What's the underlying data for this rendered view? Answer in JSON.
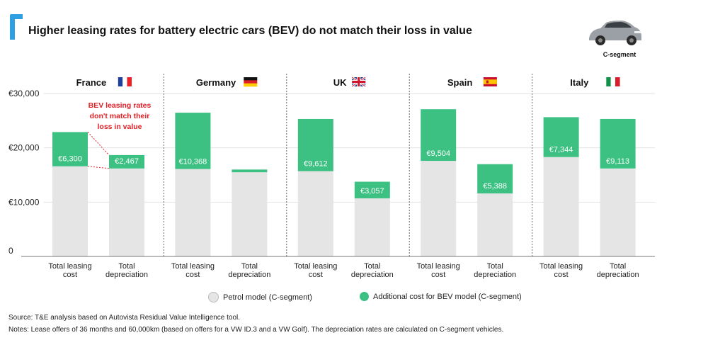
{
  "header": {
    "title": "Higher leasing rates for battery electric cars (BEV) do not match their loss in value",
    "car_label": "C-segment",
    "car_icon": "car-icon"
  },
  "legend": {
    "petrol": "Petrol model (C-segment)",
    "bev": "Additional cost for BEV model (C-segment)"
  },
  "annotation": {
    "lines": [
      "BEV leasing rates",
      "don't match their",
      "loss in value"
    ],
    "color": "#e31e24"
  },
  "footer": {
    "source": "Source: T&E analysis based on Autovista Residual Value Intelligence tool.",
    "notes": "Notes: Lease offers of 36 months and 60,000km (based on offers for a VW ID.3 and a VW Golf). The depreciation rates are calculated on C-segment vehicles."
  },
  "colors": {
    "petrol": "#e5e5e5",
    "bev": "#3cc183",
    "accent": "#2e9fe0",
    "annotation": "#e31e24"
  },
  "chart_data": {
    "type": "bar",
    "stacked": true,
    "ylim": [
      0,
      30000
    ],
    "yticks": [
      0,
      10000,
      20000,
      30000
    ],
    "ytick_labels": [
      "0",
      "€10,000",
      "€20,000",
      "€30,000"
    ],
    "grid": true,
    "legend_position": "bottom",
    "category_labels": [
      [
        "Total leasing",
        "cost"
      ],
      [
        "Total",
        "depreciation"
      ]
    ],
    "series_names": [
      "Petrol model (C-segment)",
      "Additional cost for BEV model (C-segment)"
    ],
    "groups": [
      {
        "country": "France",
        "flag": "france-flag",
        "bars": [
          {
            "petrol": 16600,
            "bev": 6300,
            "label": "€6,300"
          },
          {
            "petrol": 16200,
            "bev": 2467,
            "label": "€2,467"
          }
        ]
      },
      {
        "country": "Germany",
        "flag": "germany-flag",
        "bars": [
          {
            "petrol": 16100,
            "bev": 10368,
            "label": "€10,368"
          },
          {
            "petrol": 15500,
            "bev": 500,
            "label": ""
          }
        ]
      },
      {
        "country": "UK",
        "flag": "uk-flag",
        "bars": [
          {
            "petrol": 15700,
            "bev": 9612,
            "label": "€9,612"
          },
          {
            "petrol": 10700,
            "bev": 3057,
            "label": "€3,057"
          }
        ]
      },
      {
        "country": "Spain",
        "flag": "spain-flag",
        "bars": [
          {
            "petrol": 17600,
            "bev": 9504,
            "label": "€9,504"
          },
          {
            "petrol": 11600,
            "bev": 5388,
            "label": "€5,388"
          }
        ]
      },
      {
        "country": "Italy",
        "flag": "italy-flag",
        "bars": [
          {
            "petrol": 18300,
            "bev": 7344,
            "label": "€7,344"
          },
          {
            "petrol": 16200,
            "bev": 9113,
            "label": "€9,113"
          }
        ]
      }
    ]
  }
}
